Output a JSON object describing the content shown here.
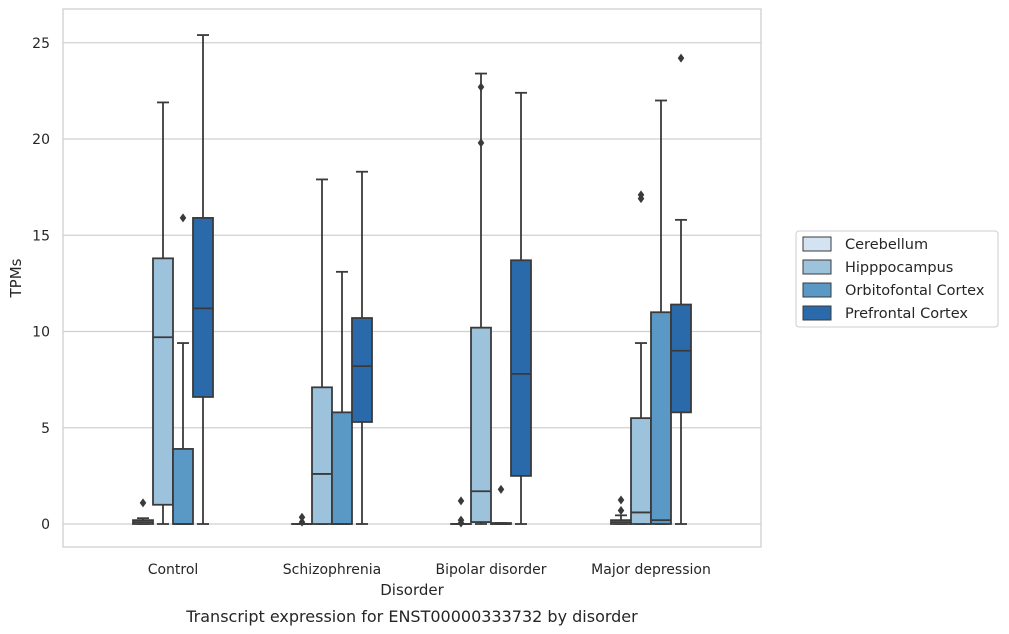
{
  "chart_data": {
    "type": "box",
    "xlabel": "Disorder",
    "ylabel": "TPMs",
    "caption": "Transcript expression for ENST00000333732 by disorder",
    "ylim": [
      -1.2,
      26.7
    ],
    "yticks": [
      0,
      5,
      10,
      15,
      20,
      25
    ],
    "grid": "horizontal",
    "legend_position": "right",
    "categories": [
      "Control",
      "Schizophrenia",
      "Bipolar disorder",
      "Major depression"
    ],
    "series": [
      {
        "name": "Cerebellum",
        "color": "#d4e3f1",
        "boxes": [
          {
            "min": 0,
            "q1": 0,
            "median": 0.1,
            "q3": 0.2,
            "max": 0.3,
            "outliers": [
              1.1
            ]
          },
          {
            "min": 0,
            "q1": 0,
            "median": 0,
            "q3": 0,
            "max": 0,
            "outliers": [
              0.1,
              0.35
            ]
          },
          {
            "min": 0,
            "q1": 0,
            "median": 0,
            "q3": 0,
            "max": 0,
            "outliers": [
              0.05,
              0.2,
              1.2
            ]
          },
          {
            "min": 0,
            "q1": 0,
            "median": 0.1,
            "q3": 0.2,
            "max": 0.45,
            "outliers": [
              0.7,
              1.25
            ]
          }
        ]
      },
      {
        "name": "Hipppocampus",
        "color": "#9dc2dc",
        "boxes": [
          {
            "min": 0,
            "q1": 1.0,
            "median": 9.7,
            "q3": 13.8,
            "max": 21.9,
            "outliers": []
          },
          {
            "min": 0,
            "q1": 0,
            "median": 2.6,
            "q3": 7.1,
            "max": 17.9,
            "outliers": []
          },
          {
            "min": 0,
            "q1": 0.1,
            "median": 1.7,
            "q3": 10.2,
            "max": 23.4,
            "outliers": [
              19.8,
              22.7
            ]
          },
          {
            "min": 0,
            "q1": 0,
            "median": 0.6,
            "q3": 5.5,
            "max": 9.4,
            "outliers": [
              16.9,
              17.1
            ]
          }
        ]
      },
      {
        "name": "Orbitofontal Cortex",
        "color": "#5a98c6",
        "boxes": [
          {
            "min": 0,
            "q1": 0,
            "median": 0,
            "q3": 3.9,
            "max": 9.4,
            "outliers": [
              15.9
            ]
          },
          {
            "min": 0,
            "q1": 0,
            "median": 0,
            "q3": 5.8,
            "max": 13.1,
            "outliers": []
          },
          {
            "min": 0,
            "q1": 0,
            "median": 0,
            "q3": 0.05,
            "max": 0.05,
            "outliers": [
              1.8
            ]
          },
          {
            "min": 0,
            "q1": 0,
            "median": 0.2,
            "q3": 11.0,
            "max": 22.0,
            "outliers": []
          }
        ]
      },
      {
        "name": "Prefrontal Cortex",
        "color": "#2a6aab",
        "boxes": [
          {
            "min": 0,
            "q1": 6.6,
            "median": 11.2,
            "q3": 15.9,
            "max": 25.4,
            "outliers": []
          },
          {
            "min": 0,
            "q1": 5.3,
            "median": 8.2,
            "q3": 10.7,
            "max": 18.3,
            "outliers": []
          },
          {
            "min": 0,
            "q1": 2.5,
            "median": 7.8,
            "q3": 13.7,
            "max": 22.4,
            "outliers": []
          },
          {
            "min": 0,
            "q1": 5.8,
            "median": 9.0,
            "q3": 11.4,
            "max": 15.8,
            "outliers": [
              24.2
            ]
          }
        ]
      }
    ]
  }
}
